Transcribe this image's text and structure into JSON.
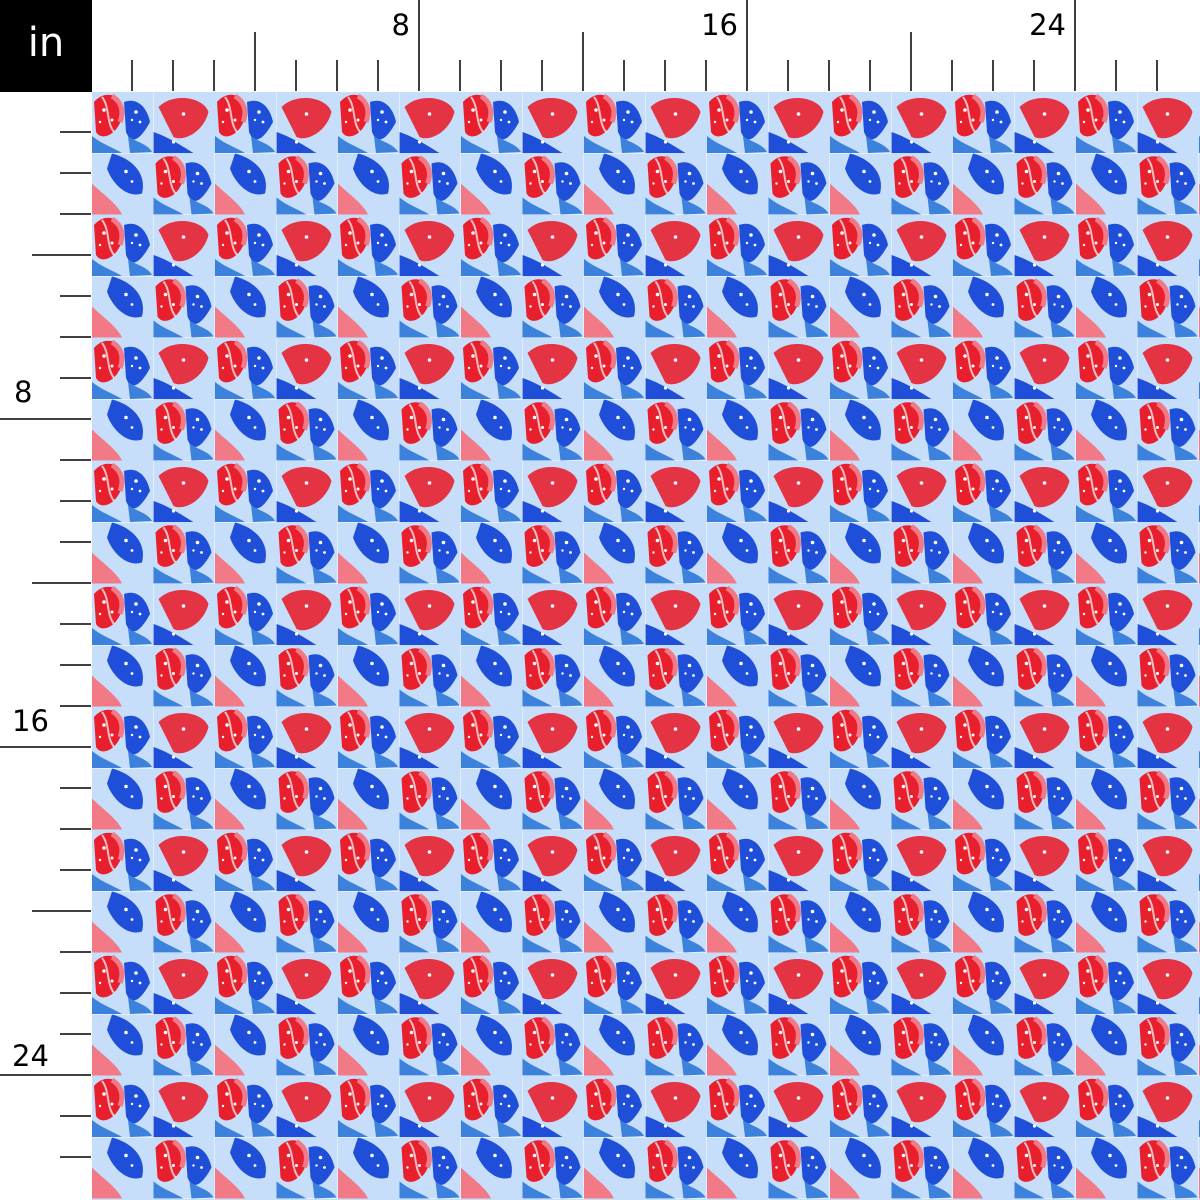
{
  "unit": "in",
  "ruler": {
    "top_labels": [
      "8",
      "16",
      "24"
    ],
    "left_labels": [
      "8",
      "16",
      "24"
    ],
    "label_values": [
      8,
      16,
      24
    ],
    "max_inches": 26
  },
  "fabric": {
    "colors": {
      "red": "#e8202e",
      "pink": "#f27a86",
      "blue": "#1f4fd8",
      "mid_blue": "#3c82dc",
      "light_blue": "#c6defa",
      "white": "#ffffff"
    },
    "repeat_inches": 3
  }
}
